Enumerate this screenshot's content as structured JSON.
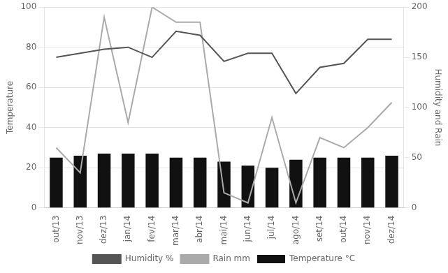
{
  "chart_data": {
    "type": "bar",
    "categories": [
      "out/13",
      "nov/13",
      "dez/13",
      "jan/14",
      "fev/14",
      "mar/14",
      "abr/14",
      "mai/14",
      "jun/14",
      "jul/14",
      "ago/14",
      "set/14",
      "out/14",
      "nov/14",
      "dez/14"
    ],
    "series": [
      {
        "name": "Temperature °C",
        "type": "bar",
        "color": "#111111",
        "values": [
          25,
          26,
          27,
          27,
          27,
          25,
          25,
          23,
          21,
          20,
          24,
          25,
          25,
          25,
          26
        ]
      },
      {
        "name": "Humidity %",
        "type": "line",
        "color": "#555555",
        "values": [
          75,
          77,
          79,
          80,
          75,
          88,
          86,
          73,
          77,
          77,
          57,
          70,
          72,
          84,
          84
        ]
      },
      {
        "name": "Rain mm",
        "type": "line",
        "color": "#aaaaaa",
        "axis": "y2",
        "values": [
          60,
          35,
          190,
          85,
          200,
          185,
          185,
          15,
          5,
          90,
          5,
          70,
          60,
          80,
          105
        ]
      }
    ],
    "ylabel": "Temperature",
    "y2label": "Humidity and Rain",
    "ylim": [
      0,
      100
    ],
    "yticks": [
      0,
      20,
      40,
      60,
      80,
      100
    ],
    "y2lim": [
      0,
      200
    ],
    "y2ticks": [
      0,
      50,
      100,
      150,
      200
    ],
    "grid": true,
    "legend": "bottom"
  }
}
